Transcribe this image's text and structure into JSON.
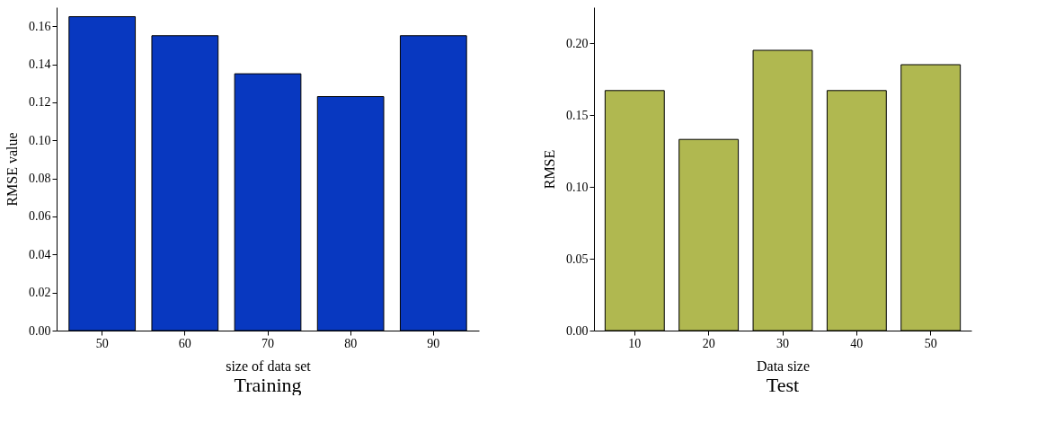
{
  "chart_data": [
    {
      "type": "bar",
      "title": "Training",
      "xlabel": "size of data set",
      "ylabel": "RMSE value",
      "categories": [
        "50",
        "60",
        "70",
        "80",
        "90"
      ],
      "series": [
        {
          "color": "#0838c0",
          "values": [
            0.165,
            0.155,
            0.135,
            0.123,
            0.155
          ]
        }
      ],
      "ylim": [
        0,
        0.17
      ],
      "yticks": [
        {
          "value": 0,
          "label": "0.00"
        },
        {
          "value": 0.02,
          "label": "0.02"
        },
        {
          "value": 0.04,
          "label": "0.04"
        },
        {
          "value": 0.06,
          "label": "0.06"
        },
        {
          "value": 0.08,
          "label": "0.08"
        },
        {
          "value": 0.1,
          "label": "0.10"
        },
        {
          "value": 0.12,
          "label": "0.12"
        },
        {
          "value": 0.14,
          "label": "0.14"
        },
        {
          "value": 0.16,
          "label": "0.16"
        }
      ],
      "grid": false
    },
    {
      "type": "bar",
      "title": "Test",
      "xlabel": "Data size",
      "ylabel": "RMSE",
      "categories": [
        "10",
        "20",
        "30",
        "40",
        "50"
      ],
      "series": [
        {
          "color": "#b0b850",
          "values": [
            0.167,
            0.133,
            0.195,
            0.167,
            0.185
          ]
        }
      ],
      "ylim": [
        0,
        0.225
      ],
      "yticks": [
        {
          "value": 0,
          "label": "0.00"
        },
        {
          "value": 0.05,
          "label": "0.05"
        },
        {
          "value": 0.1,
          "label": "0.10"
        },
        {
          "value": 0.15,
          "label": "0.15"
        },
        {
          "value": 0.2,
          "label": "0.20"
        }
      ],
      "grid": false
    }
  ]
}
